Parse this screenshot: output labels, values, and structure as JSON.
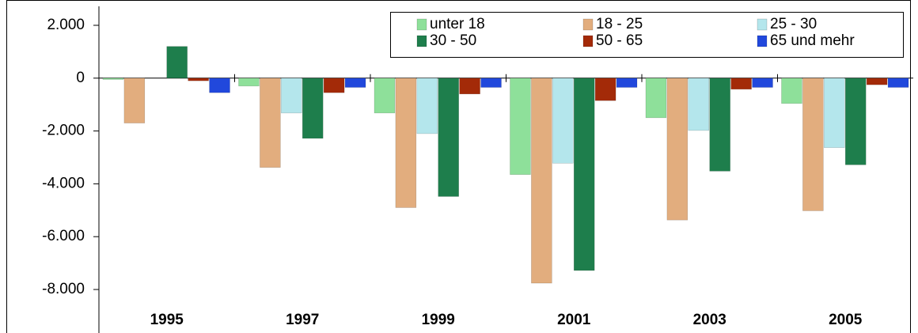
{
  "chart_data": {
    "type": "bar",
    "categories": [
      "1995",
      "1997",
      "1999",
      "2001",
      "2003",
      "2005"
    ],
    "series": [
      {
        "name": "unter 18",
        "color": "#8ee09a",
        "values": [
          -50,
          -300,
          -1320,
          -3650,
          -1500,
          -960
        ]
      },
      {
        "name": "18 - 25",
        "color": "#e2ad7e",
        "values": [
          -1700,
          -3380,
          -4900,
          -7760,
          -5370,
          -5020
        ]
      },
      {
        "name": "25 - 30",
        "color": "#b4e6ec",
        "values": [
          0,
          -1320,
          -2100,
          -3220,
          -1980,
          -2630
        ]
      },
      {
        "name": "30 - 50",
        "color": "#1e7e4c",
        "values": [
          1200,
          -2280,
          -4480,
          -7280,
          -3520,
          -3280
        ]
      },
      {
        "name": "50 - 65",
        "color": "#a32a08",
        "values": [
          -100,
          -550,
          -600,
          -850,
          -420,
          -250
        ]
      },
      {
        "name": "65 und mehr",
        "color": "#2148dc",
        "values": [
          -550,
          -350,
          -350,
          -350,
          -350,
          -350
        ]
      }
    ],
    "ylim": [
      -8000,
      2000
    ],
    "yticks": [
      {
        "value": -8000,
        "label": "-8.000"
      },
      {
        "value": -6000,
        "label": "-6.000"
      },
      {
        "value": -4000,
        "label": "-4.000"
      },
      {
        "value": -2000,
        "label": "-2.000"
      },
      0,
      {
        "value": 2000,
        "label": "2.000"
      }
    ],
    "legend": "top-right"
  }
}
